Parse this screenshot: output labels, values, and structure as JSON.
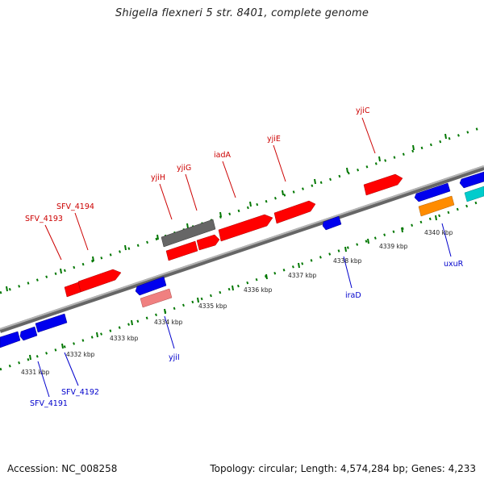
{
  "title": "Shigella flexneri 5 str. 8401, complete genome",
  "footer": {
    "accession": "Accession: NC_008258",
    "summary": "Topology: circular; Length: 4,574,284 bp; Genes: 4,233"
  },
  "colors": {
    "forward": "#ff0000",
    "reverse": "#0000ee",
    "forward_label": "#cc0000",
    "reverse_label": "#0000cc",
    "grey_gene": "#666666",
    "pink_gene": "#f08080",
    "orange_gene": "#ff8c00",
    "cyan_gene": "#00cccc",
    "backbone": "#888888",
    "tick": "#007700"
  },
  "scale_labels": [
    "4331 kbp",
    "4332 kbp",
    "4333 kbp",
    "4334 kbp",
    "4335 kbp",
    "4336 kbp",
    "4337 kbp",
    "4338 kbp",
    "4339 kbp",
    "4340 kbp"
  ],
  "forward_labels": [
    "SFV_4193",
    "SFV_4194",
    "yjiH",
    "yjiG",
    "iadA",
    "yjiE",
    "yjiC"
  ],
  "reverse_labels": [
    "SFV_4191",
    "SFV_4192",
    "yjiI",
    "iraD",
    "uxuR"
  ]
}
